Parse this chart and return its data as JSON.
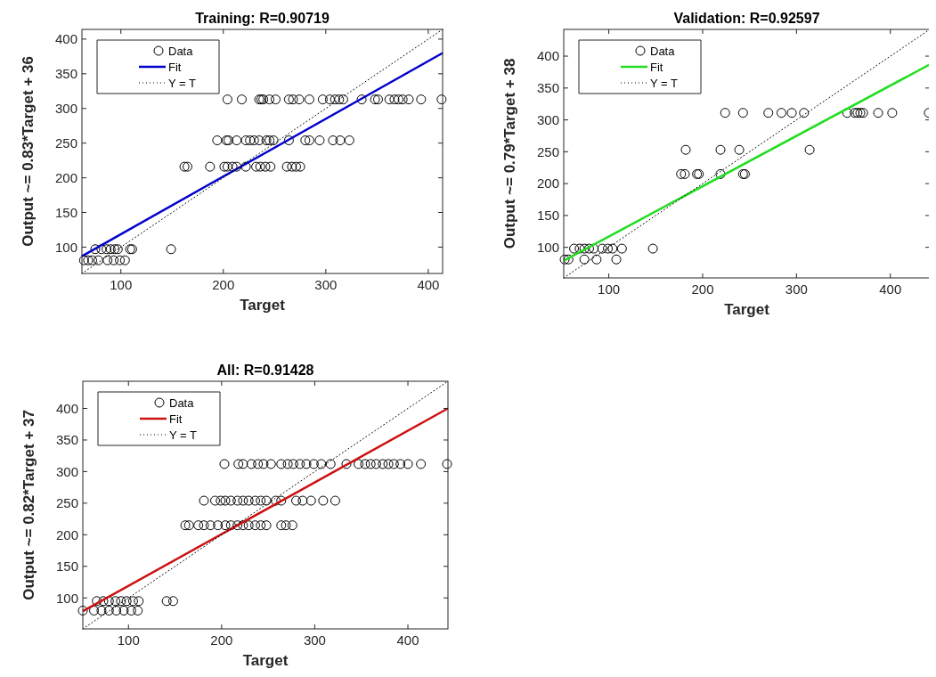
{
  "chart_data": [
    {
      "type": "scatter",
      "title": "Training: R=0.90719",
      "xlabel": "Target",
      "ylabel": "Output ~= 0.83*Target + 36",
      "xlim": [
        62,
        414
      ],
      "ylim": [
        62,
        414
      ],
      "xticks": [
        100,
        200,
        300,
        400
      ],
      "yticks": [
        100,
        150,
        200,
        250,
        300,
        350,
        400
      ],
      "grid": false,
      "legend": "top left",
      "series": [
        {
          "name": "Data",
          "type": "scatter",
          "marker": "circle",
          "color": "#000000",
          "x": [
            204,
            218,
            235,
            237,
            239,
            245,
            251,
            264,
            268,
            274,
            284,
            297,
            304,
            309,
            313,
            317,
            335,
            348,
            351,
            362,
            367,
            371,
            375,
            381,
            393,
            413,
            194,
            203,
            205,
            213,
            222,
            226,
            230,
            235,
            242,
            245,
            249,
            264,
            280,
            284,
            294,
            307,
            314,
            323,
            162,
            165,
            187,
            201,
            204,
            209,
            213,
            222,
            232,
            236,
            241,
            246,
            262,
            267,
            271,
            275,
            75,
            81,
            86,
            90,
            94,
            97,
            109,
            111,
            149,
            64,
            68,
            72,
            78,
            87,
            93,
            99,
            104
          ],
          "values": [
            313,
            313,
            313,
            313,
            313,
            313,
            313,
            313,
            313,
            313,
            313,
            313,
            313,
            313,
            313,
            313,
            313,
            313,
            313,
            313,
            313,
            313,
            313,
            313,
            313,
            313,
            254,
            254,
            254,
            254,
            254,
            254,
            254,
            254,
            254,
            254,
            254,
            254,
            254,
            254,
            254,
            254,
            254,
            254,
            216,
            216,
            216,
            216,
            216,
            216,
            216,
            216,
            216,
            216,
            216,
            216,
            216,
            216,
            216,
            216,
            97,
            97,
            97,
            97,
            97,
            97,
            97,
            97,
            97,
            81,
            81,
            81,
            81,
            81,
            81,
            81,
            81
          ]
        },
        {
          "name": "Fit",
          "type": "line",
          "marker": "none",
          "color": "#0000cc",
          "x": [
            62,
            414
          ],
          "values": [
            87,
            380
          ]
        },
        {
          "name": "Y = T",
          "type": "line",
          "marker": "none",
          "line_style": "dotted",
          "color": "#000000",
          "x": [
            62,
            414
          ],
          "values": [
            62,
            414
          ]
        }
      ]
    },
    {
      "type": "scatter",
      "title": "Validation: R=0.92597",
      "xlabel": "Target",
      "ylabel": "Output ~= 0.79*Target + 38",
      "xlim": [
        52,
        442
      ],
      "ylim": [
        52,
        442
      ],
      "xticks": [
        100,
        200,
        300,
        400
      ],
      "yticks": [
        100,
        150,
        200,
        250,
        300,
        350,
        400
      ],
      "grid": false,
      "legend": "top left",
      "series": [
        {
          "name": "Data",
          "type": "scatter",
          "marker": "circle",
          "color": "#000000",
          "x": [
            224,
            243,
            270,
            284,
            295,
            308,
            354,
            362,
            365,
            368,
            371,
            387,
            402,
            441,
            182,
            219,
            239,
            314,
            177,
            181,
            194,
            196,
            219,
            243,
            245,
            63,
            69,
            74,
            79,
            84,
            93,
            99,
            104,
            114,
            147,
            53,
            57,
            74,
            87,
            108
          ],
          "values": [
            311,
            311,
            311,
            311,
            311,
            311,
            311,
            311,
            311,
            311,
            311,
            311,
            311,
            311,
            253,
            253,
            253,
            253,
            215,
            215,
            215,
            215,
            215,
            215,
            215,
            98,
            98,
            98,
            98,
            98,
            98,
            98,
            98,
            98,
            98,
            81,
            81,
            81,
            81,
            81
          ]
        },
        {
          "name": "Fit",
          "type": "line",
          "marker": "none",
          "color": "#22dd22",
          "x": [
            52,
            442
          ],
          "values": [
            79,
            387
          ]
        },
        {
          "name": "Y = T",
          "type": "line",
          "marker": "none",
          "line_style": "dotted",
          "color": "#000000",
          "x": [
            52,
            442
          ],
          "values": [
            52,
            442
          ]
        }
      ]
    },
    {
      "type": "scatter",
      "title": "All: R=0.91428",
      "xlabel": "Target",
      "ylabel": "Output ~= 0.82*Target + 37",
      "xlim": [
        51,
        443
      ],
      "ylim": [
        51,
        443
      ],
      "xticks": [
        100,
        200,
        300,
        400
      ],
      "yticks": [
        100,
        150,
        200,
        250,
        300,
        350,
        400
      ],
      "grid": false,
      "legend": "top left",
      "series": [
        {
          "name": "Data",
          "type": "scatter",
          "marker": "circle",
          "color": "#000000",
          "x": [
            203,
            218,
            223,
            232,
            239,
            245,
            253,
            264,
            271,
            277,
            284,
            291,
            299,
            307,
            317,
            334,
            347,
            354,
            360,
            366,
            373,
            379,
            385,
            392,
            400,
            414,
            442,
            181,
            193,
            199,
            204,
            210,
            217,
            223,
            229,
            236,
            242,
            248,
            258,
            264,
            280,
            287,
            296,
            309,
            322,
            161,
            165,
            175,
            181,
            188,
            196,
            204,
            210,
            217,
            223,
            229,
            236,
            242,
            248,
            264,
            269,
            276,
            66,
            73,
            79,
            86,
            92,
            98,
            105,
            111,
            141,
            148,
            51,
            63,
            71,
            79,
            87,
            95,
            103,
            110
          ],
          "values": [
            312,
            312,
            312,
            312,
            312,
            312,
            312,
            312,
            312,
            312,
            312,
            312,
            312,
            312,
            312,
            312,
            312,
            312,
            312,
            312,
            312,
            312,
            312,
            312,
            312,
            312,
            312,
            254,
            254,
            254,
            254,
            254,
            254,
            254,
            254,
            254,
            254,
            254,
            254,
            254,
            254,
            254,
            254,
            254,
            254,
            215,
            215,
            215,
            215,
            215,
            215,
            215,
            215,
            215,
            215,
            215,
            215,
            215,
            215,
            215,
            215,
            215,
            95,
            95,
            95,
            95,
            95,
            95,
            95,
            95,
            95,
            95,
            80,
            80,
            80,
            80,
            80,
            80,
            80,
            80
          ]
        },
        {
          "name": "Fit",
          "type": "line",
          "marker": "none",
          "color": "#cc1111",
          "x": [
            51,
            443
          ],
          "values": [
            79,
            400
          ]
        },
        {
          "name": "Y = T",
          "type": "line",
          "marker": "none",
          "line_style": "dotted",
          "color": "#000000",
          "x": [
            51,
            443
          ],
          "values": [
            51,
            443
          ]
        }
      ]
    }
  ]
}
